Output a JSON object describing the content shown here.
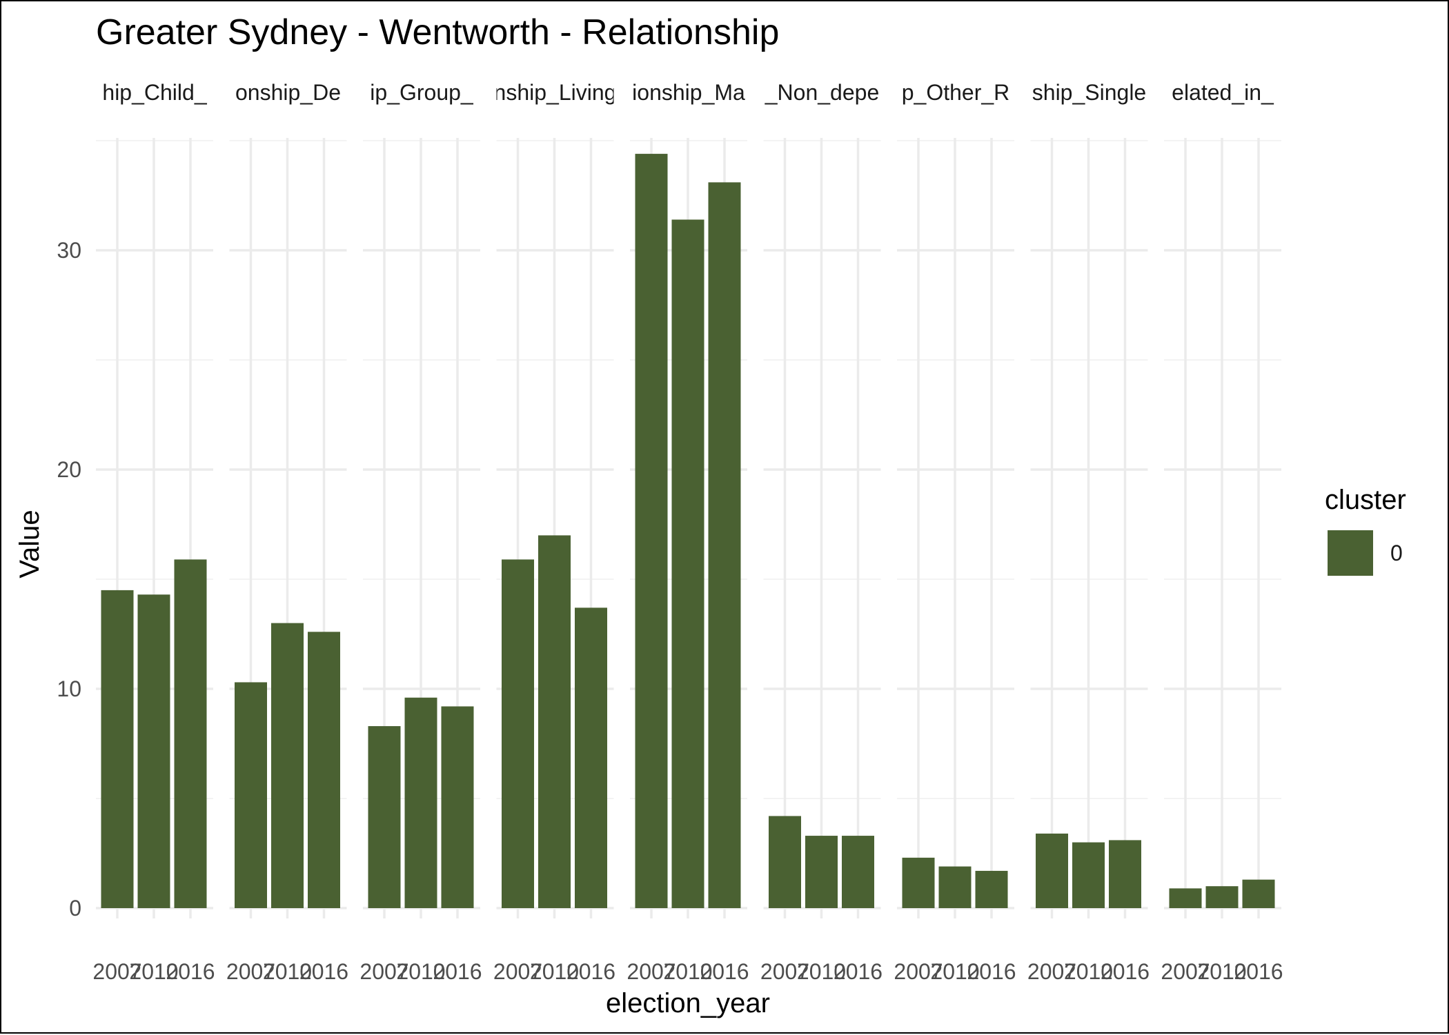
{
  "chart_data": {
    "type": "bar",
    "title": "Greater Sydney - Wentworth - Relationship",
    "xlabel": "election_year",
    "ylabel": "Value",
    "ylim": [
      0,
      35
    ],
    "yticks": [
      0,
      10,
      20,
      30
    ],
    "grid": true,
    "legend": {
      "title": "cluster",
      "entries": [
        "0"
      ],
      "position": "right"
    },
    "colors": {
      "bar": "#4a6132",
      "grid_major": "#ebebeb",
      "grid_minor": "#f3f3f3"
    },
    "categories": [
      "2007",
      "2010",
      "2016"
    ],
    "facets": [
      {
        "label": "hip_Child_",
        "values": [
          14.5,
          14.3,
          15.9
        ]
      },
      {
        "label": "onship_De",
        "values": [
          10.3,
          13.0,
          12.6
        ]
      },
      {
        "label": "ip_Group_",
        "values": [
          8.3,
          9.6,
          9.2
        ]
      },
      {
        "label": "nship_Living",
        "values": [
          15.9,
          17.0,
          13.7
        ]
      },
      {
        "label": "ionship_Ma",
        "values": [
          34.4,
          31.4,
          33.1
        ]
      },
      {
        "label": "_Non_depe",
        "values": [
          4.2,
          3.3,
          3.3
        ]
      },
      {
        "label": "p_Other_R",
        "values": [
          2.3,
          1.9,
          1.7
        ]
      },
      {
        "label": "ship_Single",
        "values": [
          3.4,
          3.0,
          3.1
        ]
      },
      {
        "label": "elated_in_",
        "values": [
          0.9,
          1.0,
          1.3
        ]
      }
    ]
  }
}
